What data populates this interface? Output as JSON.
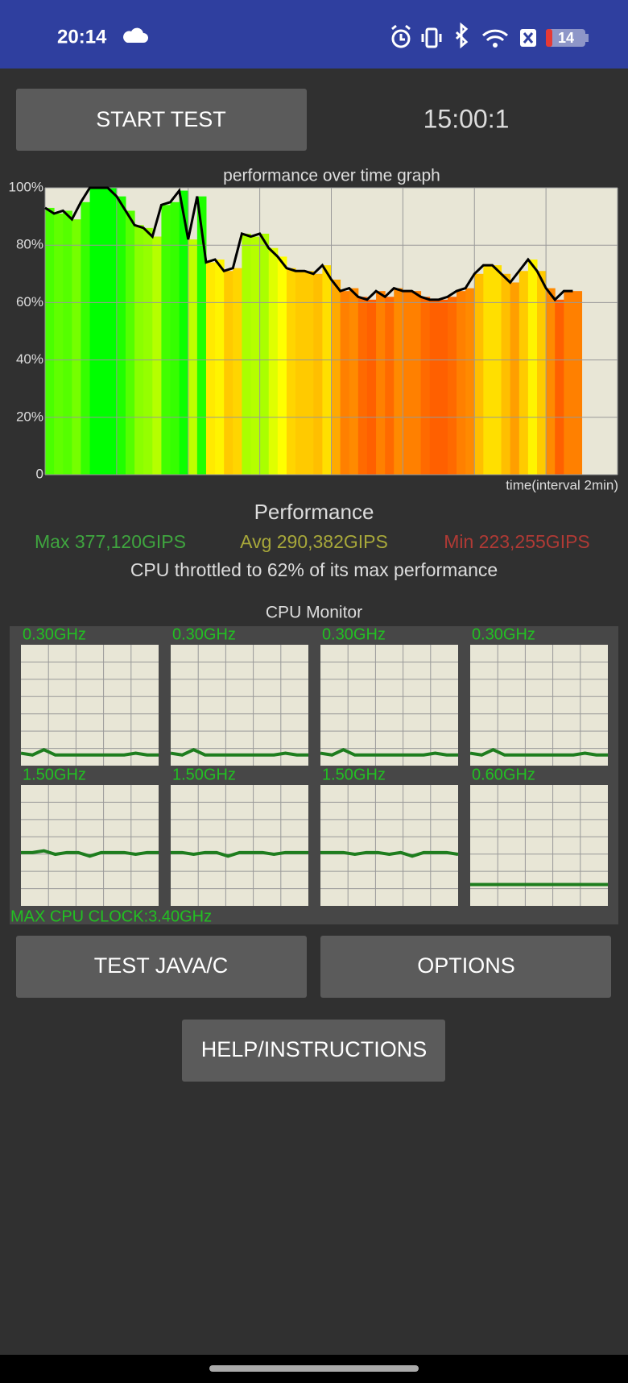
{
  "status_bar": {
    "time": "20:14",
    "battery": "14"
  },
  "start_button": "START TEST",
  "timer": "15:00:1",
  "chart_data": {
    "type": "area",
    "title": "performance over time graph",
    "x_label": "time(interval 2min)",
    "x": [
      0,
      0.25,
      0.5,
      0.75,
      1,
      1.25,
      1.5,
      1.75,
      2,
      2.25,
      2.5,
      2.75,
      3,
      3.25,
      3.5,
      3.75,
      4,
      4.25,
      4.5,
      4.75,
      5,
      5.25,
      5.5,
      5.75,
      6,
      6.25,
      6.5,
      6.75,
      7,
      7.25,
      7.5,
      7.75,
      8,
      8.25,
      8.5,
      8.75,
      9,
      9.25,
      9.5,
      9.75,
      10,
      10.25,
      10.5,
      10.75,
      11,
      11.25,
      11.5,
      11.75,
      12,
      12.25,
      12.5,
      12.75,
      13,
      13.25,
      13.5,
      13.75,
      14,
      14.25,
      14.5,
      14.75
    ],
    "values": [
      93,
      91,
      92,
      89,
      95,
      100,
      100,
      100,
      97,
      92,
      87,
      86,
      83,
      94,
      95,
      99,
      82,
      97,
      74,
      75,
      71,
      72,
      84,
      83,
      84,
      79,
      76,
      72,
      71,
      71,
      70,
      73,
      68,
      64,
      65,
      62,
      61,
      64,
      62,
      65,
      64,
      64,
      62,
      61,
      61,
      62,
      64,
      65,
      70,
      73,
      73,
      70,
      67,
      71,
      75,
      71,
      65,
      61,
      64,
      64
    ],
    "xlim": [
      0,
      16
    ],
    "xticks": [
      0,
      2,
      4,
      6,
      8,
      10,
      12,
      14,
      16
    ],
    "ylim": [
      0,
      100
    ],
    "yticks": [
      0,
      {
        "value": 20,
        "label": "20%"
      },
      {
        "value": 40,
        "label": "40%"
      },
      {
        "value": 60,
        "label": "60%"
      },
      {
        "value": 80,
        "label": "80%"
      },
      {
        "value": 100,
        "label": "100%"
      }
    ],
    "grid": true,
    "line_color": "#000000",
    "background": "#e8e6d6"
  },
  "performance": {
    "title": "Performance",
    "max": "Max 377,120GIPS",
    "avg": "Avg 290,382GIPS",
    "min": "Min 223,255GIPS",
    "summary": "CPU throttled to 62% of its max performance"
  },
  "cpu_monitor": {
    "title": "CPU Monitor",
    "max_clock_label": "MAX CPU CLOCK:3.40GHz",
    "max_clock": 3.4,
    "line_color": "#1e7d1e",
    "cores": [
      {
        "label": "0.30GHz",
        "values": [
          0.35,
          0.3,
          0.45,
          0.3,
          0.3,
          0.3,
          0.3,
          0.3,
          0.3,
          0.3,
          0.35,
          0.3,
          0.3
        ]
      },
      {
        "label": "0.30GHz",
        "values": [
          0.35,
          0.3,
          0.45,
          0.3,
          0.3,
          0.3,
          0.3,
          0.3,
          0.3,
          0.3,
          0.35,
          0.3,
          0.3
        ]
      },
      {
        "label": "0.30GHz",
        "values": [
          0.35,
          0.3,
          0.45,
          0.3,
          0.3,
          0.3,
          0.3,
          0.3,
          0.3,
          0.3,
          0.35,
          0.3,
          0.3
        ]
      },
      {
        "label": "0.30GHz",
        "values": [
          0.35,
          0.3,
          0.45,
          0.3,
          0.3,
          0.3,
          0.3,
          0.3,
          0.3,
          0.3,
          0.35,
          0.3,
          0.3
        ]
      },
      {
        "label": "1.50GHz",
        "values": [
          1.5,
          1.5,
          1.55,
          1.45,
          1.5,
          1.5,
          1.4,
          1.5,
          1.5,
          1.5,
          1.45,
          1.5,
          1.5
        ]
      },
      {
        "label": "1.50GHz",
        "values": [
          1.5,
          1.5,
          1.45,
          1.5,
          1.5,
          1.4,
          1.5,
          1.5,
          1.5,
          1.45,
          1.5,
          1.5,
          1.5
        ]
      },
      {
        "label": "1.50GHz",
        "values": [
          1.5,
          1.5,
          1.5,
          1.45,
          1.5,
          1.5,
          1.45,
          1.5,
          1.4,
          1.5,
          1.5,
          1.5,
          1.45
        ]
      },
      {
        "label": "0.60GHz",
        "values": [
          0.6,
          0.6,
          0.6,
          0.6,
          0.6,
          0.6,
          0.6,
          0.6,
          0.6,
          0.6,
          0.6,
          0.6,
          0.6
        ]
      }
    ]
  },
  "buttons": {
    "test": "TEST JAVA/C",
    "options": "OPTIONS",
    "help": "HELP/INSTRUCTIONS"
  }
}
